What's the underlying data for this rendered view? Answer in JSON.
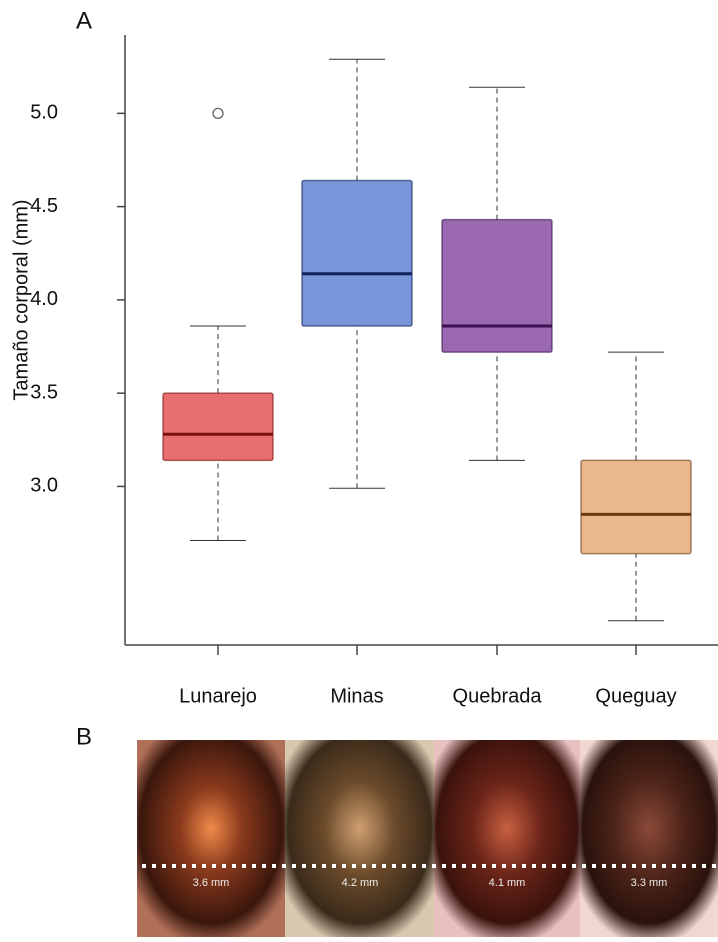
{
  "panels": {
    "a": "A",
    "b": "B"
  },
  "chart_data": {
    "type": "box",
    "y_label": "Tamaño corporal (mm)",
    "categories": [
      "Lunarejo",
      "Minas",
      "Quebrada",
      "Queguay"
    ],
    "boxes": [
      {
        "color": "#e86f6f",
        "median_color": "#7a1010",
        "whisker_low": 2.71,
        "q1": 3.14,
        "median": 3.28,
        "q3": 3.5,
        "whisker_high": 3.86,
        "outliers": [
          5.0
        ]
      },
      {
        "color": "#7a96da",
        "median_color": "#12205a",
        "whisker_low": 2.99,
        "q1": 3.86,
        "median": 4.14,
        "q3": 4.64,
        "whisker_high": 5.29,
        "outliers": []
      },
      {
        "color": "#9a69b0",
        "median_color": "#3a1050",
        "whisker_low": 3.14,
        "q1": 3.72,
        "median": 3.86,
        "q3": 4.43,
        "whisker_high": 5.14,
        "outliers": []
      },
      {
        "color": "#e9b98d",
        "median_color": "#6a3a12",
        "whisker_low": 2.28,
        "q1": 2.64,
        "median": 2.85,
        "q3": 3.14,
        "whisker_high": 3.72,
        "outliers": []
      }
    ],
    "ylim": [
      2.15,
      5.42
    ],
    "yticks": [
      {
        "value": 3,
        "label": "3.0"
      },
      {
        "value": 3.5,
        "label": "3.5"
      },
      {
        "value": 4,
        "label": "4.0"
      },
      {
        "value": 4.5,
        "label": "4.5"
      },
      {
        "value": 5,
        "label": "5.0"
      }
    ]
  },
  "photos": [
    {
      "label": "3.6 mm"
    },
    {
      "label": "4.2 mm"
    },
    {
      "label": "4.1 mm"
    },
    {
      "label": "3.3 mm"
    }
  ]
}
